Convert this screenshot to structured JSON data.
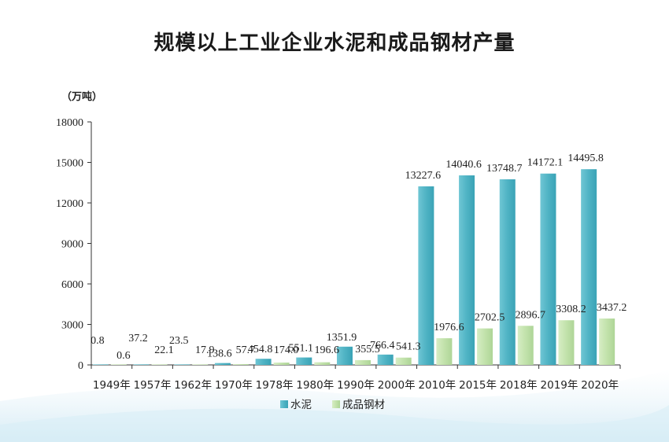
{
  "chart_data": {
    "type": "bar",
    "title": "规模以上工业企业水泥和成品钢材产量",
    "unit": "（万吨）",
    "categories": [
      "1949年",
      "1957年",
      "1962年",
      "1970年",
      "1978年",
      "1980年",
      "1990年",
      "2000年",
      "2010年",
      "2015年",
      "2018年",
      "2019年",
      "2020年"
    ],
    "series": [
      {
        "name": "水泥",
        "color": "#5bbccc",
        "values": [
          0.8,
          37.2,
          23.5,
          138.6,
          454.8,
          551.1,
          1351.9,
          766.4,
          13227.6,
          14040.6,
          13748.7,
          14172.1,
          14495.8
        ],
        "labels": [
          "0.8",
          "37.2",
          "23.5",
          "138.6",
          "454.8",
          "551.1",
          "1351.9",
          "766.4",
          "13227.6",
          "14040.6",
          "13748.7",
          "14172.1",
          "14495.8"
        ]
      },
      {
        "name": "成品钢材",
        "color": "#c5e4b0",
        "values": [
          0.6,
          22.1,
          17.9,
          57.7,
          174.0,
          196.6,
          355.5,
          541.3,
          1976.6,
          2702.5,
          2896.7,
          3308.2,
          3437.2
        ],
        "labels": [
          "0.6",
          "22.1",
          "17.9",
          "57.7",
          "174.0",
          "196.6",
          "355.5",
          "541.3",
          "1976.6",
          "2702.5",
          "2896.7",
          "3308.2",
          "3437.2"
        ]
      }
    ],
    "yticks": [
      "0",
      "3000",
      "6000",
      "9000",
      "12000",
      "15000",
      "18000"
    ],
    "ylim": [
      0,
      18000
    ],
    "grid": false,
    "legend_position": "bottom"
  }
}
